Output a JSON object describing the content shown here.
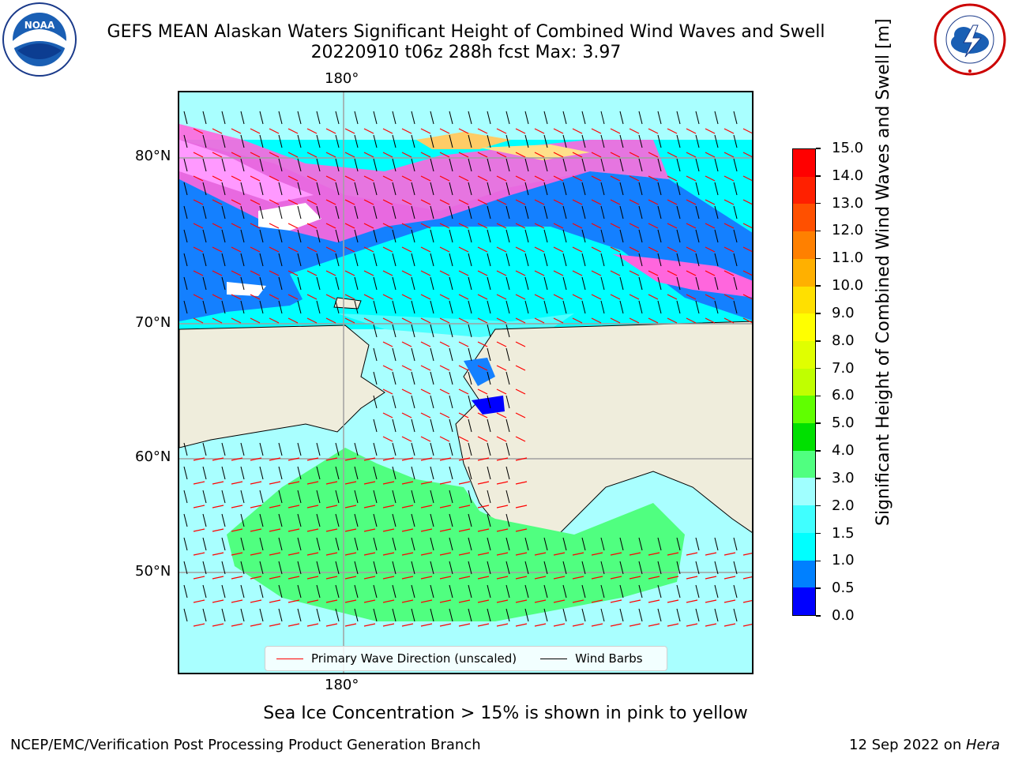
{
  "header": {
    "title_line1": "GEFS MEAN Alaskan Waters Significant Height of Combined Wind Waves and Swell",
    "title_line2": "20220910 t06z 288h fcst   Max: 3.97"
  },
  "logos": {
    "left_icon": "noaa-logo",
    "right_icon": "nws-logo"
  },
  "map": {
    "lon_top_label": "180°",
    "lon_bottom_label": "180°",
    "lat_labels": [
      "80°N",
      "70°N",
      "60°N",
      "50°N"
    ]
  },
  "legend": {
    "wave_label": "Primary Wave Direction (unscaled)",
    "wind_label": "Wind Barbs",
    "wave_color": "#ff0000",
    "wind_color": "#000000"
  },
  "colorbar": {
    "label": "Significant Height of Combined Wind Waves and Swell [m]",
    "ticks": [
      "0.0",
      "0.5",
      "1.0",
      "1.5",
      "2.0",
      "3.0",
      "4.0",
      "5.0",
      "6.0",
      "7.0",
      "8.0",
      "9.0",
      "10.0",
      "11.0",
      "12.0",
      "13.0",
      "14.0",
      "15.0"
    ],
    "colors": [
      "#0000ff",
      "#0080ff",
      "#00ffff",
      "#40ffff",
      "#a0ffff",
      "#50ff80",
      "#00e000",
      "#60ff00",
      "#c0ff00",
      "#e0ff00",
      "#ffff00",
      "#ffe000",
      "#ffb000",
      "#ff8000",
      "#ff5000",
      "#ff2000",
      "#ff0000"
    ]
  },
  "notes": {
    "ice_note": "Sea Ice Concentration > 15% is shown in pink to yellow"
  },
  "footer": {
    "left": "NCEP/EMC/Verification Post Processing Product Generation Branch",
    "right_date": "12 Sep 2022 on ",
    "right_machine": "Hera"
  }
}
